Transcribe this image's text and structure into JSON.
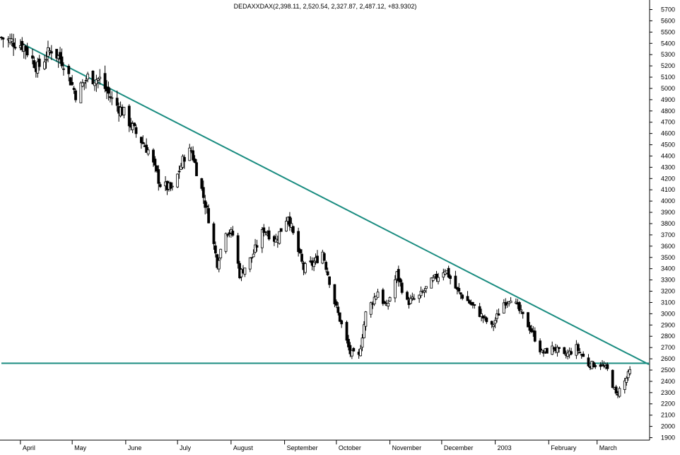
{
  "chart_data": {
    "type": "candlestick",
    "title": "DEDAXXDAX(2,398.11, 2,520.54, 2,327.87, 2,487.12, +83.9302)",
    "ylim": [
      1900,
      5800
    ],
    "y_ticks": [
      1900,
      2000,
      2100,
      2200,
      2300,
      2400,
      2500,
      2600,
      2700,
      2800,
      2900,
      3000,
      3100,
      3200,
      3300,
      3400,
      3500,
      3600,
      3700,
      3800,
      3900,
      4000,
      4100,
      4200,
      4300,
      4400,
      4500,
      4600,
      4700,
      4800,
      4900,
      5000,
      5100,
      5200,
      5300,
      5400,
      5500,
      5600,
      5700
    ],
    "x_range": [
      "2002-03-21",
      "2003-03-31"
    ],
    "month_labels": [
      {
        "label": "April",
        "date": "2002-04-01"
      },
      {
        "label": "May",
        "date": "2002-05-01"
      },
      {
        "label": "June",
        "date": "2002-06-01"
      },
      {
        "label": "July",
        "date": "2002-07-01"
      },
      {
        "label": "August",
        "date": "2002-08-01"
      },
      {
        "label": "September",
        "date": "2002-09-01"
      },
      {
        "label": "October",
        "date": "2002-10-01"
      },
      {
        "label": "November",
        "date": "2002-11-01"
      },
      {
        "label": "December",
        "date": "2002-12-01"
      },
      {
        "label": "2003",
        "date": "2003-01-01"
      },
      {
        "label": "February",
        "date": "2003-02-01"
      },
      {
        "label": "March",
        "date": "2003-03-01"
      }
    ],
    "anchors": [
      {
        "date": "2002-03-21",
        "close": 5450
      },
      {
        "date": "2002-04-03",
        "close": 5380
      },
      {
        "date": "2002-04-11",
        "close": 5180
      },
      {
        "date": "2002-04-19",
        "close": 5350
      },
      {
        "date": "2002-04-26",
        "close": 5230
      },
      {
        "date": "2002-05-03",
        "close": 4950
      },
      {
        "date": "2002-05-10",
        "close": 5100
      },
      {
        "date": "2002-05-17",
        "close": 5080
      },
      {
        "date": "2002-05-24",
        "close": 4900
      },
      {
        "date": "2002-05-31",
        "close": 4780
      },
      {
        "date": "2002-06-07",
        "close": 4600
      },
      {
        "date": "2002-06-14",
        "close": 4450
      },
      {
        "date": "2002-06-21",
        "close": 4150
      },
      {
        "date": "2002-06-28",
        "close": 4100
      },
      {
        "date": "2002-07-05",
        "close": 4400
      },
      {
        "date": "2002-07-09",
        "close": 4450
      },
      {
        "date": "2002-07-15",
        "close": 4100
      },
      {
        "date": "2002-07-19",
        "close": 3850
      },
      {
        "date": "2002-07-24",
        "close": 3450
      },
      {
        "date": "2002-07-29",
        "close": 3750
      },
      {
        "date": "2002-08-02",
        "close": 3700
      },
      {
        "date": "2002-08-06",
        "close": 3350
      },
      {
        "date": "2002-08-13",
        "close": 3500
      },
      {
        "date": "2002-08-20",
        "close": 3750
      },
      {
        "date": "2002-08-27",
        "close": 3650
      },
      {
        "date": "2002-09-03",
        "close": 3880
      },
      {
        "date": "2002-09-06",
        "close": 3700
      },
      {
        "date": "2002-09-12",
        "close": 3400
      },
      {
        "date": "2002-09-18",
        "close": 3450
      },
      {
        "date": "2002-09-23",
        "close": 3550
      },
      {
        "date": "2002-09-30",
        "close": 3100
      },
      {
        "date": "2002-10-04",
        "close": 2900
      },
      {
        "date": "2002-10-09",
        "close": 2650
      },
      {
        "date": "2002-10-14",
        "close": 2620
      },
      {
        "date": "2002-10-18",
        "close": 3000
      },
      {
        "date": "2002-10-25",
        "close": 3200
      },
      {
        "date": "2002-10-30",
        "close": 3050
      },
      {
        "date": "2002-11-05",
        "close": 3350
      },
      {
        "date": "2002-11-11",
        "close": 3100
      },
      {
        "date": "2002-11-18",
        "close": 3150
      },
      {
        "date": "2002-11-25",
        "close": 3280
      },
      {
        "date": "2002-12-03",
        "close": 3400
      },
      {
        "date": "2002-12-10",
        "close": 3200
      },
      {
        "date": "2002-12-17",
        "close": 3100
      },
      {
        "date": "2002-12-23",
        "close": 3000
      },
      {
        "date": "2002-12-30",
        "close": 2880
      },
      {
        "date": "2003-01-06",
        "close": 3100
      },
      {
        "date": "2003-01-10",
        "close": 3150
      },
      {
        "date": "2003-01-16",
        "close": 3000
      },
      {
        "date": "2003-01-22",
        "close": 2850
      },
      {
        "date": "2003-01-28",
        "close": 2650
      },
      {
        "date": "2003-02-04",
        "close": 2700
      },
      {
        "date": "2003-02-10",
        "close": 2620
      },
      {
        "date": "2003-02-17",
        "close": 2700
      },
      {
        "date": "2003-02-24",
        "close": 2550
      },
      {
        "date": "2003-03-03",
        "close": 2550
      },
      {
        "date": "2003-03-07",
        "close": 2500
      },
      {
        "date": "2003-03-12",
        "close": 2280
      },
      {
        "date": "2003-03-17",
        "close": 2400
      },
      {
        "date": "2003-03-20",
        "close": 2487
      }
    ],
    "lines": [
      {
        "name": "resistance",
        "from": {
          "date": "2002-04-03",
          "y": 5390
        },
        "to": {
          "date": "2003-03-31",
          "y": 2550
        },
        "color": "#1a8c80"
      },
      {
        "name": "support",
        "from": {
          "date": "2002-03-21",
          "y": 2560
        },
        "to": {
          "date": "2003-03-31",
          "y": 2560
        },
        "color": "#1a8c80"
      }
    ],
    "colors": {
      "candle": "#000000",
      "trendline": "#1a8c80",
      "axis": "#000000",
      "grid_ticks": "#000000"
    },
    "grid": false
  }
}
